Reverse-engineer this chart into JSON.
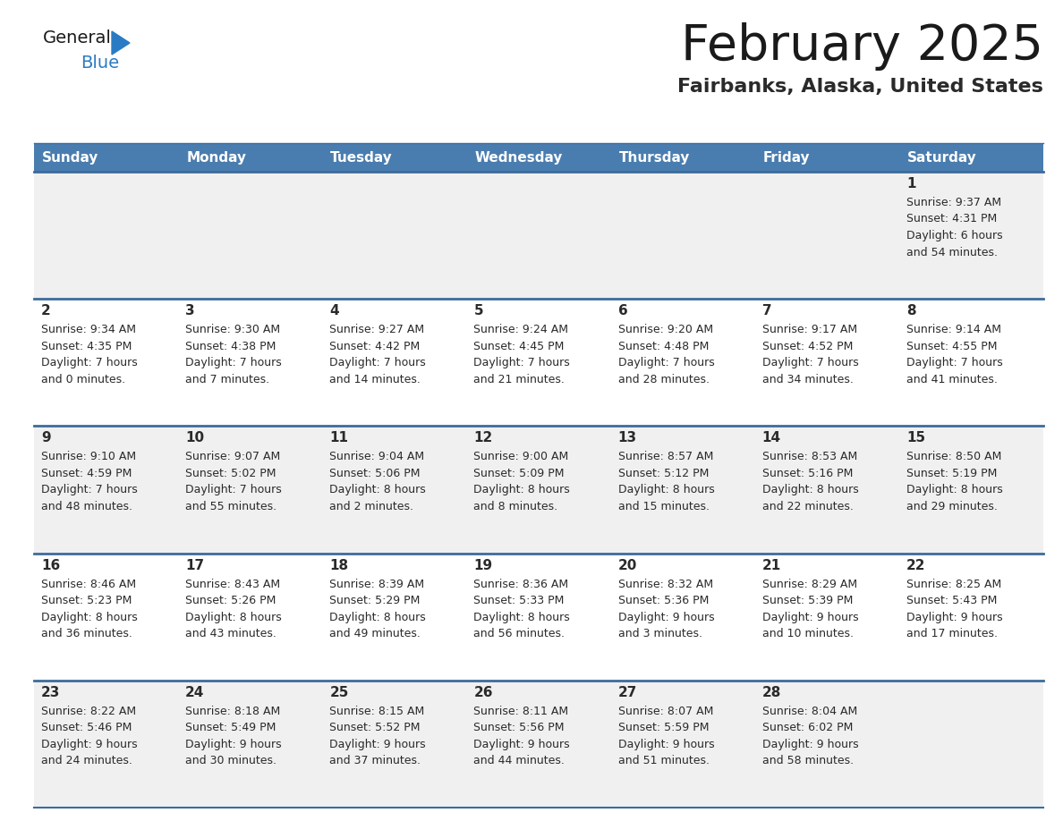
{
  "title": "February 2025",
  "subtitle": "Fairbanks, Alaska, United States",
  "days_of_week": [
    "Sunday",
    "Monday",
    "Tuesday",
    "Wednesday",
    "Thursday",
    "Friday",
    "Saturday"
  ],
  "header_bg": "#4a7daf",
  "header_text": "#ffffff",
  "cell_bg_light": "#f0f0f0",
  "cell_bg_white": "#ffffff",
  "row_line_color": "#3d6b9c",
  "text_color": "#2a2a2a",
  "day_num_color": "#2a2a2a",
  "logo_general_color": "#1a1a1a",
  "logo_blue_color": "#2a7bc4",
  "calendar_data": [
    [
      {
        "day": null,
        "sunrise": null,
        "sunset": null,
        "daylight": null
      },
      {
        "day": null,
        "sunrise": null,
        "sunset": null,
        "daylight": null
      },
      {
        "day": null,
        "sunrise": null,
        "sunset": null,
        "daylight": null
      },
      {
        "day": null,
        "sunrise": null,
        "sunset": null,
        "daylight": null
      },
      {
        "day": null,
        "sunrise": null,
        "sunset": null,
        "daylight": null
      },
      {
        "day": null,
        "sunrise": null,
        "sunset": null,
        "daylight": null
      },
      {
        "day": 1,
        "sunrise": "9:37 AM",
        "sunset": "4:31 PM",
        "daylight_line1": "Daylight: 6 hours",
        "daylight_line2": "and 54 minutes."
      }
    ],
    [
      {
        "day": 2,
        "sunrise": "9:34 AM",
        "sunset": "4:35 PM",
        "daylight_line1": "Daylight: 7 hours",
        "daylight_line2": "and 0 minutes."
      },
      {
        "day": 3,
        "sunrise": "9:30 AM",
        "sunset": "4:38 PM",
        "daylight_line1": "Daylight: 7 hours",
        "daylight_line2": "and 7 minutes."
      },
      {
        "day": 4,
        "sunrise": "9:27 AM",
        "sunset": "4:42 PM",
        "daylight_line1": "Daylight: 7 hours",
        "daylight_line2": "and 14 minutes."
      },
      {
        "day": 5,
        "sunrise": "9:24 AM",
        "sunset": "4:45 PM",
        "daylight_line1": "Daylight: 7 hours",
        "daylight_line2": "and 21 minutes."
      },
      {
        "day": 6,
        "sunrise": "9:20 AM",
        "sunset": "4:48 PM",
        "daylight_line1": "Daylight: 7 hours",
        "daylight_line2": "and 28 minutes."
      },
      {
        "day": 7,
        "sunrise": "9:17 AM",
        "sunset": "4:52 PM",
        "daylight_line1": "Daylight: 7 hours",
        "daylight_line2": "and 34 minutes."
      },
      {
        "day": 8,
        "sunrise": "9:14 AM",
        "sunset": "4:55 PM",
        "daylight_line1": "Daylight: 7 hours",
        "daylight_line2": "and 41 minutes."
      }
    ],
    [
      {
        "day": 9,
        "sunrise": "9:10 AM",
        "sunset": "4:59 PM",
        "daylight_line1": "Daylight: 7 hours",
        "daylight_line2": "and 48 minutes."
      },
      {
        "day": 10,
        "sunrise": "9:07 AM",
        "sunset": "5:02 PM",
        "daylight_line1": "Daylight: 7 hours",
        "daylight_line2": "and 55 minutes."
      },
      {
        "day": 11,
        "sunrise": "9:04 AM",
        "sunset": "5:06 PM",
        "daylight_line1": "Daylight: 8 hours",
        "daylight_line2": "and 2 minutes."
      },
      {
        "day": 12,
        "sunrise": "9:00 AM",
        "sunset": "5:09 PM",
        "daylight_line1": "Daylight: 8 hours",
        "daylight_line2": "and 8 minutes."
      },
      {
        "day": 13,
        "sunrise": "8:57 AM",
        "sunset": "5:12 PM",
        "daylight_line1": "Daylight: 8 hours",
        "daylight_line2": "and 15 minutes."
      },
      {
        "day": 14,
        "sunrise": "8:53 AM",
        "sunset": "5:16 PM",
        "daylight_line1": "Daylight: 8 hours",
        "daylight_line2": "and 22 minutes."
      },
      {
        "day": 15,
        "sunrise": "8:50 AM",
        "sunset": "5:19 PM",
        "daylight_line1": "Daylight: 8 hours",
        "daylight_line2": "and 29 minutes."
      }
    ],
    [
      {
        "day": 16,
        "sunrise": "8:46 AM",
        "sunset": "5:23 PM",
        "daylight_line1": "Daylight: 8 hours",
        "daylight_line2": "and 36 minutes."
      },
      {
        "day": 17,
        "sunrise": "8:43 AM",
        "sunset": "5:26 PM",
        "daylight_line1": "Daylight: 8 hours",
        "daylight_line2": "and 43 minutes."
      },
      {
        "day": 18,
        "sunrise": "8:39 AM",
        "sunset": "5:29 PM",
        "daylight_line1": "Daylight: 8 hours",
        "daylight_line2": "and 49 minutes."
      },
      {
        "day": 19,
        "sunrise": "8:36 AM",
        "sunset": "5:33 PM",
        "daylight_line1": "Daylight: 8 hours",
        "daylight_line2": "and 56 minutes."
      },
      {
        "day": 20,
        "sunrise": "8:32 AM",
        "sunset": "5:36 PM",
        "daylight_line1": "Daylight: 9 hours",
        "daylight_line2": "and 3 minutes."
      },
      {
        "day": 21,
        "sunrise": "8:29 AM",
        "sunset": "5:39 PM",
        "daylight_line1": "Daylight: 9 hours",
        "daylight_line2": "and 10 minutes."
      },
      {
        "day": 22,
        "sunrise": "8:25 AM",
        "sunset": "5:43 PM",
        "daylight_line1": "Daylight: 9 hours",
        "daylight_line2": "and 17 minutes."
      }
    ],
    [
      {
        "day": 23,
        "sunrise": "8:22 AM",
        "sunset": "5:46 PM",
        "daylight_line1": "Daylight: 9 hours",
        "daylight_line2": "and 24 minutes."
      },
      {
        "day": 24,
        "sunrise": "8:18 AM",
        "sunset": "5:49 PM",
        "daylight_line1": "Daylight: 9 hours",
        "daylight_line2": "and 30 minutes."
      },
      {
        "day": 25,
        "sunrise": "8:15 AM",
        "sunset": "5:52 PM",
        "daylight_line1": "Daylight: 9 hours",
        "daylight_line2": "and 37 minutes."
      },
      {
        "day": 26,
        "sunrise": "8:11 AM",
        "sunset": "5:56 PM",
        "daylight_line1": "Daylight: 9 hours",
        "daylight_line2": "and 44 minutes."
      },
      {
        "day": 27,
        "sunrise": "8:07 AM",
        "sunset": "5:59 PM",
        "daylight_line1": "Daylight: 9 hours",
        "daylight_line2": "and 51 minutes."
      },
      {
        "day": 28,
        "sunrise": "8:04 AM",
        "sunset": "6:02 PM",
        "daylight_line1": "Daylight: 9 hours",
        "daylight_line2": "and 58 minutes."
      },
      {
        "day": null,
        "sunrise": null,
        "sunset": null,
        "daylight_line1": null,
        "daylight_line2": null
      }
    ]
  ],
  "figsize": [
    11.88,
    9.18
  ],
  "dpi": 100
}
